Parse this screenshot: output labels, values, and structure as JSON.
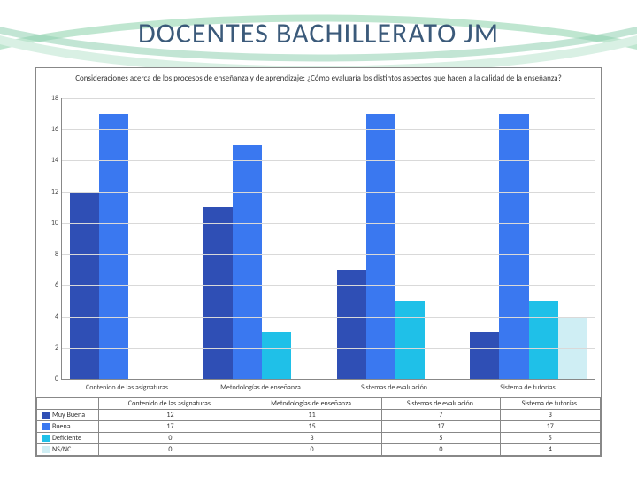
{
  "title": "DOCENTES BACHILLERATO JM",
  "title_color": "#3b5a7a",
  "title_fontsize": 32,
  "background_color": "#ffffff",
  "swoosh_colors": [
    "#bfe6d0",
    "#8fd0b0",
    "#d9f0e4"
  ],
  "chart": {
    "type": "bar",
    "title": "Consideraciones acerca de los procesos de enseñanza y de aprendizaje: ¿Cómo evaluaría los distintos aspectos que hacen a la calidad de la enseñanza?",
    "title_fontsize": 9,
    "ylim": [
      0,
      18
    ],
    "ytick_step": 2,
    "grid_color": "#d9d9d9",
    "axis_color": "#888888",
    "frame_border": "#888888",
    "categories": [
      "Contenido de las asignaturas.",
      "Metodologías de enseñanza.",
      "Sistemas de evaluación.",
      "Sistema de tutorías."
    ],
    "series": [
      {
        "name": "Muy Buena",
        "color": "#2f4fb5",
        "values": [
          12,
          11,
          7,
          3
        ]
      },
      {
        "name": "Buena",
        "color": "#3a78f0",
        "values": [
          17,
          15,
          17,
          17
        ]
      },
      {
        "name": "Deficiente",
        "color": "#1fc0e8",
        "values": [
          0,
          3,
          5,
          5
        ]
      },
      {
        "name": "NS/NC",
        "color": "#cfeef4",
        "values": [
          0,
          0,
          0,
          4
        ]
      }
    ],
    "bar_gap": 0,
    "label_fontsize": 8
  }
}
